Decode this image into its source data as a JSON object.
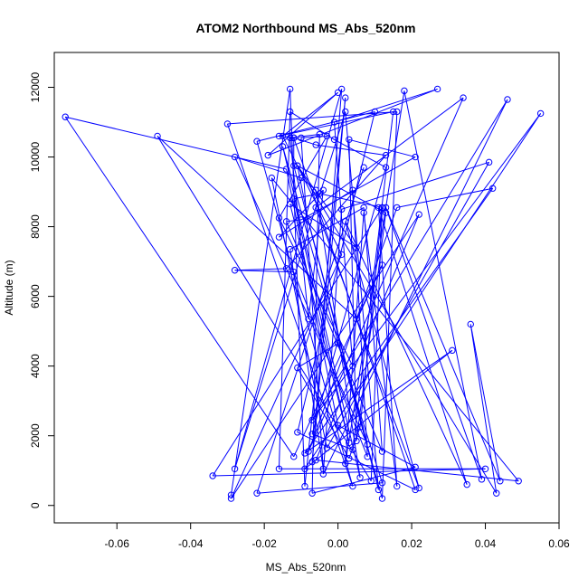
{
  "chart_data": {
    "type": "line",
    "title": "ATOM2 Northbound MS_Abs_520nm",
    "xlabel": "MS_Abs_520nm",
    "ylabel": "Altitude (m)",
    "xlim": [
      -0.077,
      0.06
    ],
    "ylim": [
      -500,
      13000
    ],
    "x_ticks": [
      -0.06,
      -0.04,
      -0.02,
      0.0,
      0.02,
      0.04,
      0.06
    ],
    "x_tick_labels": [
      "-0.06",
      "-0.04",
      "-0.02",
      "0.00",
      "0.02",
      "0.04",
      "0.06"
    ],
    "y_ticks": [
      0,
      2000,
      4000,
      6000,
      8000,
      10000,
      12000
    ],
    "y_tick_labels": [
      "0",
      "2000",
      "4000",
      "6000",
      "8000",
      "10000",
      "12000"
    ],
    "grid": false,
    "legend": "none",
    "marker": "open-circle",
    "line_color": "#0000ff",
    "series": [
      {
        "points": [
          [
            -0.029,
            300
          ],
          [
            -0.013,
            11950
          ],
          [
            -0.009,
            550
          ],
          [
            0.002,
            11700
          ],
          [
            -0.007,
            1250
          ],
          [
            0.001,
            11950
          ],
          [
            -0.028,
            1050
          ],
          [
            0.002,
            11300
          ],
          [
            0.011,
            450
          ],
          [
            -0.012,
            9750
          ],
          [
            -0.012,
            10550
          ],
          [
            0.021,
            450
          ],
          [
            -0.011,
            2100
          ],
          [
            0.01,
            11300
          ],
          [
            -0.022,
            10450
          ],
          [
            0.004,
            550
          ],
          [
            -0.03,
            10950
          ],
          [
            0.016,
            11300
          ],
          [
            0.012,
            200
          ],
          [
            -0.015,
            10300
          ],
          [
            0.006,
            800
          ],
          [
            -0.006,
            9050
          ],
          [
            -0.01,
            9400
          ],
          [
            -0.028,
            10000
          ],
          [
            0.008,
            1750
          ],
          [
            -0.008,
            8150
          ],
          [
            -0.011,
            9750
          ],
          [
            0.043,
            350
          ],
          [
            0.036,
            5200
          ],
          [
            0.044,
            700
          ],
          [
            0.013,
            8550
          ],
          [
            0.039,
            750
          ],
          [
            0.018,
            11900
          ],
          [
            0.002,
            1200
          ],
          [
            0.007,
            8400
          ],
          [
            0.016,
            550
          ],
          [
            0.011,
            8550
          ],
          [
            0.035,
            600
          ],
          [
            0.002,
            8150
          ],
          [
            0.022,
            500
          ],
          [
            -0.006,
            8550
          ],
          [
            0.034,
            11700
          ],
          [
            -0.008,
            1550
          ],
          [
            0.016,
            8550
          ],
          [
            0.042,
            9100
          ],
          [
            -0.009,
            1500
          ],
          [
            0.031,
            4450
          ],
          [
            -0.009,
            1050
          ],
          [
            0.055,
            11250
          ],
          [
            -0.007,
            2450
          ],
          [
            0.046,
            11650
          ],
          [
            -0.004,
            900
          ],
          [
            0.001,
            8500
          ],
          [
            0.041,
            9850
          ],
          [
            -0.003,
            1650
          ],
          [
            -0.018,
            9400
          ],
          [
            0.049,
            700
          ],
          [
            -0.006,
            1300
          ],
          [
            0.022,
            8350
          ],
          [
            -0.029,
            200
          ],
          [
            0.001,
            7200
          ],
          [
            -0.015,
            10600
          ],
          [
            0.0,
            11850
          ],
          [
            -0.019,
            10050
          ],
          [
            0.027,
            11950
          ],
          [
            -0.001,
            11000
          ],
          [
            0.004,
            4000
          ],
          [
            -0.016,
            8250
          ],
          [
            -0.003,
            10600
          ],
          [
            -0.01,
            10550
          ],
          [
            -0.004,
            1050
          ],
          [
            -0.013,
            7350
          ],
          [
            0.007,
            8550
          ],
          [
            0.012,
            1550
          ],
          [
            -0.014,
            8150
          ],
          [
            -0.01,
            8200
          ],
          [
            0.021,
            10000
          ],
          [
            0.003,
            10500
          ],
          [
            0.005,
            1850
          ],
          [
            0.013,
            8400
          ],
          [
            -0.011,
            9750
          ],
          [
            0.005,
            7400
          ],
          [
            -0.013,
            8650
          ],
          [
            0.003,
            1800
          ],
          [
            -0.012,
            8800
          ],
          [
            -0.005,
            8950
          ],
          [
            0.012,
            8550
          ],
          [
            -0.034,
            850
          ],
          [
            0.04,
            1050
          ],
          [
            -0.016,
            1050
          ],
          [
            -0.013,
            11300
          ],
          [
            -0.001,
            10500
          ],
          [
            0.013,
            9700
          ],
          [
            -0.007,
            2050
          ],
          [
            0.004,
            1600
          ],
          [
            0.015,
            11300
          ],
          [
            -0.016,
            10600
          ],
          [
            -0.012,
            10550
          ],
          [
            -0.006,
            10350
          ],
          [
            0.013,
            10050
          ],
          [
            -0.014,
            6800
          ],
          [
            -0.028,
            6750
          ],
          [
            -0.012,
            6700
          ],
          [
            0.008,
            1400
          ],
          [
            0.004,
            9050
          ],
          [
            -0.016,
            7700
          ],
          [
            -0.004,
            9050
          ],
          [
            -0.008,
            5350
          ],
          [
            -0.013,
            10550
          ],
          [
            -0.005,
            10650
          ],
          [
            -0.007,
            350
          ],
          [
            0.021,
            1100
          ],
          [
            0.0,
            2300
          ],
          [
            -0.014,
            9650
          ],
          [
            -0.074,
            11150
          ],
          [
            -0.012,
            1400
          ],
          [
            0.012,
            6900
          ],
          [
            0.005,
            5350
          ],
          [
            -0.049,
            10600
          ],
          [
            0.009,
            700
          ],
          [
            0.012,
            8550
          ],
          [
            0.006,
            2250
          ],
          [
            0.003,
            1350
          ],
          [
            -0.011,
            3950
          ],
          [
            0.0,
            4650
          ],
          [
            0.012,
            650
          ],
          [
            -0.022,
            350
          ],
          [
            0.007,
            9700
          ]
        ]
      }
    ]
  }
}
